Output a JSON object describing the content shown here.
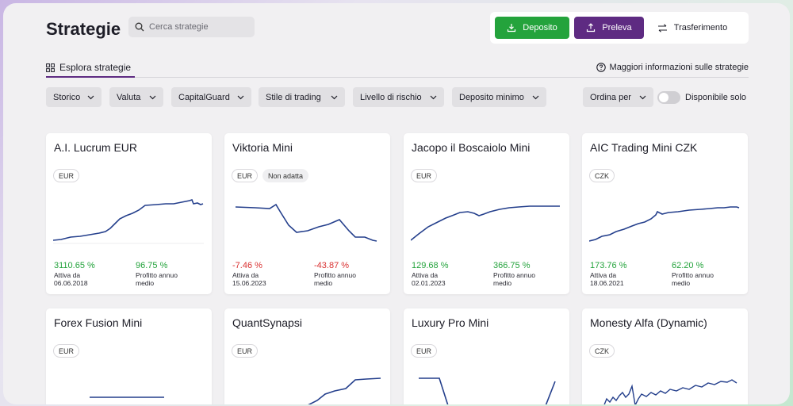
{
  "header": {
    "title": "Strategie",
    "search_placeholder": "Cerca strategie",
    "deposit_label": "Deposito",
    "withdraw_label": "Preleva",
    "transfer_label": "Trasferimento"
  },
  "tabs": {
    "explore_label": "Esplora strategie",
    "more_info_label": "Maggiori informazioni sulle strategie"
  },
  "filters": [
    {
      "label": "Storico"
    },
    {
      "label": "Valuta"
    },
    {
      "label": "CapitalGuard"
    },
    {
      "label": "Stile di trading"
    },
    {
      "label": "Livello di rischio"
    },
    {
      "label": "Deposito minimo"
    },
    {
      "label": "Ordina per"
    }
  ],
  "toggle": {
    "label": "Disponibile solo",
    "on": false
  },
  "colors": {
    "green": "#24a33c",
    "purple": "#5e2b82",
    "red": "#d93030",
    "line": "#243f8c"
  },
  "cards": [
    {
      "name": "A.I. Lucrum EUR",
      "badges": [
        "EUR"
      ],
      "return": "3110.65 %",
      "return_sign": "pos",
      "active_label": "Attiva da",
      "active_date": "06.06.2018",
      "annual": "96.75 %",
      "annual_sign": "pos",
      "annual_label_1": "Profitto annuo",
      "annual_label_2": "medio"
    },
    {
      "name": "Viktoria Mini",
      "badges": [
        "EUR",
        "Non adatta"
      ],
      "return": "-7.46 %",
      "return_sign": "neg",
      "active_label": "Attiva da",
      "active_date": "15.06.2023",
      "annual": "-43.87 %",
      "annual_sign": "neg",
      "annual_label_1": "Profitto annuo",
      "annual_label_2": "medio"
    },
    {
      "name": "Jacopo il Boscaiolo Mini",
      "badges": [
        "EUR"
      ],
      "return": "129.68 %",
      "return_sign": "pos",
      "active_label": "Attiva da",
      "active_date": "02.01.2023",
      "annual": "366.75 %",
      "annual_sign": "pos",
      "annual_label_1": "Profitto annuo",
      "annual_label_2": "medio"
    },
    {
      "name": "AIC Trading Mini CZK",
      "badges": [
        "CZK"
      ],
      "return": "173.76 %",
      "return_sign": "pos",
      "active_label": "Attiva da",
      "active_date": "18.06.2021",
      "annual": "62.20 %",
      "annual_sign": "pos",
      "annual_label_1": "Profitto annuo",
      "annual_label_2": "medio"
    },
    {
      "name": "Forex Fusion Mini",
      "badges": [
        "EUR"
      ]
    },
    {
      "name": "QuantSynapsi",
      "badges": [
        "EUR"
      ]
    },
    {
      "name": "Luxury Pro Mini",
      "badges": [
        "EUR"
      ]
    },
    {
      "name": "Monesty Alfa (Dynamic)",
      "badges": [
        "CZK"
      ]
    }
  ]
}
